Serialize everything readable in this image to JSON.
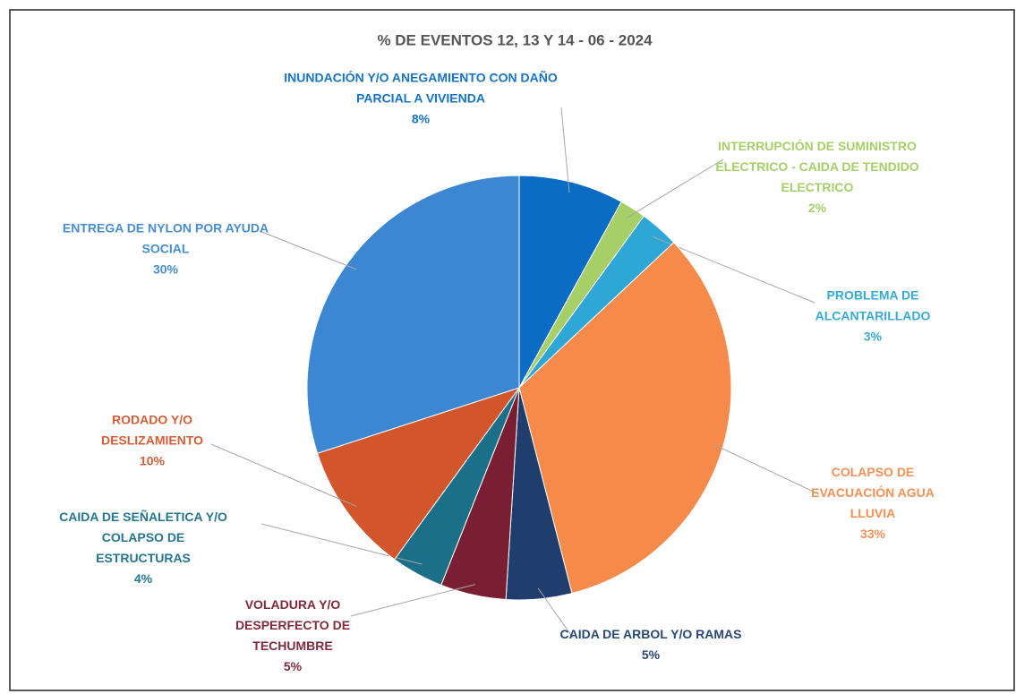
{
  "chart_data": {
    "type": "pie",
    "title": "% DE EVENTOS 12, 13 Y 14 - 06 - 2024",
    "categories": [
      "INUNDACIÓN Y/O ANEGAMIENTO CON DAÑO PARCIAL A VIVIENDA",
      "INTERRUPCIÓN DE SUMINISTRO ELECTRICO - CAIDA DE TENDIDO ELECTRICO",
      "PROBLEMA DE ALCANTARILLADO",
      "COLAPSO DE EVACUACIÓN AGUA LLUVIA",
      "CAIDA DE ARBOL Y/O RAMAS",
      "VOLADURA Y/O DESPERFECTO DE TECHUMBRE",
      "CAIDA DE SEÑALETICA Y/O COLAPSO DE ESTRUCTURAS",
      "RODADO Y/O DESLIZAMIENTO",
      "ENTREGA DE NYLON POR AYUDA SOCIAL"
    ],
    "values": [
      8,
      2,
      3,
      33,
      5,
      5,
      4,
      10,
      30
    ],
    "value_labels": [
      "8%",
      "2%",
      "3%",
      "33%",
      "5%",
      "5%",
      "4%",
      "10%",
      "30%"
    ],
    "colors": [
      "#0b6cc3",
      "#a6cf68",
      "#2ea6d6",
      "#f58a4b",
      "#1f3d6d",
      "#7a1f33",
      "#1b6f89",
      "#d2552b",
      "#3d87d2"
    ]
  }
}
